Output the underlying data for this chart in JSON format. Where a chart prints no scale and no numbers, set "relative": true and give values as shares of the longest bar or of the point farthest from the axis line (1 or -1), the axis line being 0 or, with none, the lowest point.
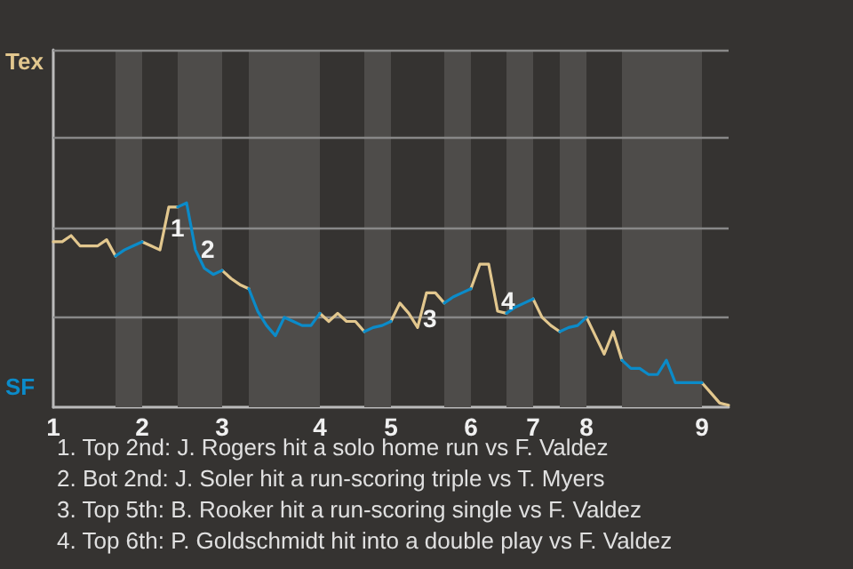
{
  "chart_data": {
    "type": "line",
    "relative": true,
    "categories": [
      "1",
      null,
      null,
      null,
      null,
      null,
      null,
      null,
      null,
      null,
      "2",
      null,
      null,
      null,
      null,
      null,
      null,
      null,
      null,
      "3",
      null,
      null,
      null,
      null,
      null,
      null,
      null,
      null,
      null,
      null,
      "4",
      null,
      null,
      null,
      null,
      null,
      null,
      null,
      "5",
      null,
      null,
      null,
      null,
      null,
      null,
      null,
      null,
      "6",
      null,
      null,
      null,
      null,
      null,
      null,
      "7",
      null,
      null,
      null,
      null,
      null,
      "8",
      null,
      null,
      null,
      null,
      null,
      null,
      null,
      null,
      null,
      null,
      null,
      null,
      "9",
      null,
      null,
      null
    ],
    "series": [
      {
        "name": "Tex",
        "color": "#e2c78e",
        "values": [
          0.81,
          0.81,
          0.84,
          0.79,
          0.79,
          0.79,
          0.82,
          0.74,
          null,
          null,
          0.81,
          0.79,
          0.77,
          0.98,
          0.98,
          null,
          null,
          null,
          null,
          0.67,
          0.63,
          0.6,
          0.58,
          null,
          null,
          null,
          null,
          null,
          null,
          null,
          0.46,
          0.42,
          0.46,
          0.42,
          0.42,
          0.37,
          null,
          null,
          0.42,
          0.51,
          0.46,
          0.39,
          0.56,
          0.56,
          0.51,
          null,
          null,
          0.58,
          0.7,
          0.7,
          0.47,
          0.46,
          null,
          null,
          0.53,
          0.44,
          0.4,
          0.37,
          null,
          null,
          0.44,
          0.35,
          0.26,
          0.37,
          0.23,
          null,
          null,
          null,
          null,
          null,
          null,
          null,
          null,
          0.12,
          0.07,
          0.02,
          0.01
        ]
      },
      {
        "name": "SF",
        "color": "#0b8bc9",
        "values": [
          null,
          null,
          null,
          null,
          null,
          null,
          null,
          0.74,
          0.77,
          0.79,
          0.81,
          null,
          null,
          null,
          0.98,
          1,
          0.77,
          0.68,
          0.65,
          0.67,
          null,
          null,
          0.58,
          0.47,
          0.4,
          0.35,
          0.44,
          0.42,
          0.4,
          0.4,
          0.46,
          null,
          null,
          null,
          null,
          0.37,
          0.39,
          0.4,
          0.42,
          null,
          null,
          null,
          null,
          null,
          0.51,
          0.54,
          0.56,
          0.58,
          null,
          null,
          null,
          0.46,
          0.49,
          0.51,
          0.53,
          null,
          null,
          0.37,
          0.39,
          0.4,
          0.44,
          null,
          null,
          null,
          0.23,
          0.19,
          0.19,
          0.16,
          0.16,
          0.23,
          0.12,
          0.12,
          0.12,
          0.12,
          null,
          null,
          null
        ]
      }
    ],
    "ref_lines": [
      {
        "axis": "y",
        "value": 0.44,
        "color": "#888888"
      },
      {
        "axis": "y",
        "value": 0.88,
        "color": "#888888"
      },
      {
        "axis": "y",
        "value": 1.32,
        "color": "#888888"
      },
      {
        "axis": "y",
        "value": 1.75,
        "color": "#888888"
      }
    ],
    "marker": "none",
    "annotations": [
      "1",
      "2",
      "3",
      "4",
      "1. Top 2nd: J. Rogers hit a solo home run vs F. Valdez",
      "2. Bot 2nd: J. Soler hit a run-scoring triple vs T. Myers",
      "3. Top 5th: B. Rooker hit a run-scoring single vs F. Valdez",
      "4. Top 6th: P. Goldschmidt hit into a double play vs F. Valdez"
    ]
  }
}
